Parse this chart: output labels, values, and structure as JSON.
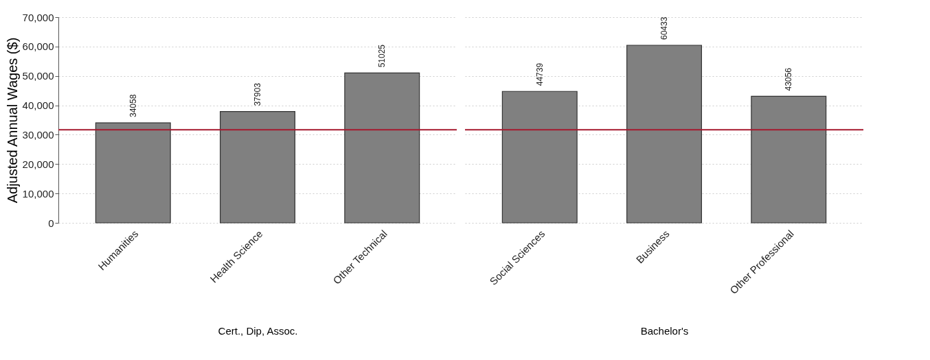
{
  "chart_data": [
    {
      "type": "bar",
      "categories": [
        "Humanities",
        "Health Science",
        "Other Technical"
      ],
      "values": [
        34058,
        37903,
        51025
      ],
      "color": "#808080",
      "xlabel": "Cert., Dip, Assoc.",
      "ylabel": "Adjusted Annual Wages ($)",
      "ylim": [
        0,
        70000
      ],
      "yticks": [
        {
          "value": 0,
          "label": "0"
        },
        {
          "value": 10000,
          "label": "10,000"
        },
        {
          "value": 20000,
          "label": "20,000"
        },
        {
          "value": 30000,
          "label": "30,000"
        },
        {
          "value": 40000,
          "label": "40,000"
        },
        {
          "value": 50000,
          "label": "50,000"
        },
        {
          "value": 60000,
          "label": "60,000"
        },
        {
          "value": 70000,
          "label": "70,000"
        }
      ],
      "grid": "y",
      "data_labels": true,
      "ref_lines": [
        {
          "axis": "y",
          "value": 31700,
          "color": "#a6192e"
        }
      ]
    },
    {
      "type": "bar",
      "categories": [
        "Social Sciences",
        "Business",
        "Other Professional"
      ],
      "values": [
        44739,
        60433,
        43056
      ],
      "color": "#808080",
      "xlabel": "Bachelor's",
      "ylim": [
        0,
        70000
      ],
      "yticks": [
        0,
        10000,
        20000,
        30000,
        40000,
        50000,
        60000,
        70000
      ],
      "grid": "y",
      "data_labels": true,
      "tick_labels": "x",
      "ref_lines": [
        {
          "axis": "y",
          "value": 31700,
          "color": "#a6192e"
        }
      ]
    }
  ]
}
